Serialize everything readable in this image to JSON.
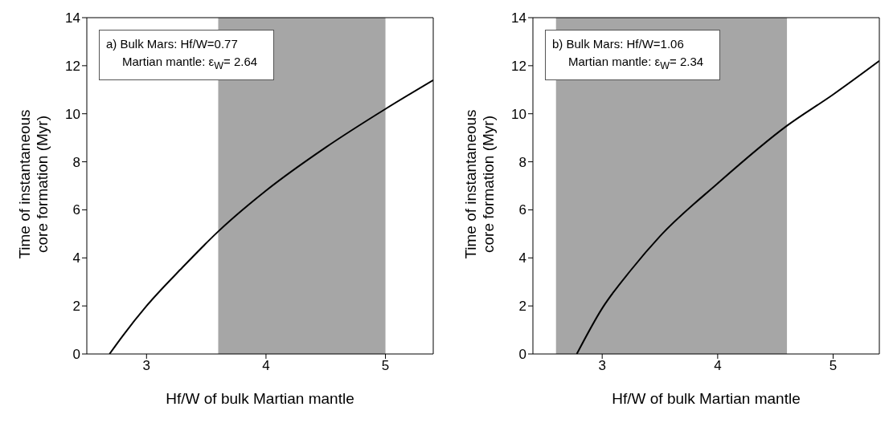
{
  "chart_data": [
    {
      "type": "line",
      "xlabel": "Hf/W of bulk Martian mantle",
      "ylabel": "Time of instantaneous\ncore formation (Myr)",
      "annotations": [
        "a) Bulk Mars: Hf/W=0.77",
        "Martian mantle: ε$_{W}$= 2.64"
      ],
      "x": [
        2.69,
        2.8,
        3.0,
        3.3,
        3.6,
        4.0,
        4.5,
        5.0,
        5.4
      ],
      "values": [
        0,
        0.75,
        2.0,
        3.6,
        5.1,
        6.8,
        8.6,
        10.2,
        11.4
      ],
      "color": "#000000",
      "marker": "none",
      "xlim": [
        2.5,
        5.4
      ],
      "ylim": [
        0,
        14
      ],
      "xticks": [
        3,
        4,
        5
      ],
      "yticks": [
        0,
        2,
        4,
        6,
        8,
        10,
        12,
        14
      ],
      "bands": [
        {
          "axis": "x",
          "from": 3.6,
          "to": 5.0,
          "color": "#a6a6a6"
        }
      ]
    },
    {
      "type": "line",
      "xlabel": "Hf/W of bulk Martian mantle",
      "ylabel": "Time of instantaneous\ncore formation (Myr)",
      "annotations": [
        "b) Bulk Mars: Hf/W=1.06",
        "Martian mantle: ε$_{W}$= 2.34"
      ],
      "x": [
        2.78,
        3.0,
        3.25,
        3.5,
        4.0,
        4.6,
        5.0,
        5.4
      ],
      "values": [
        0,
        1.9,
        3.5,
        4.9,
        7.1,
        9.5,
        10.8,
        12.2
      ],
      "color": "#000000",
      "marker": "none",
      "xlim": [
        2.4,
        5.4
      ],
      "ylim": [
        0,
        14
      ],
      "xticks": [
        3,
        4,
        5
      ],
      "yticks": [
        0,
        2,
        4,
        6,
        8,
        10,
        12,
        14
      ],
      "bands": [
        {
          "axis": "x",
          "from": 2.6,
          "to": 4.6,
          "color": "#a6a6a6"
        }
      ]
    }
  ]
}
